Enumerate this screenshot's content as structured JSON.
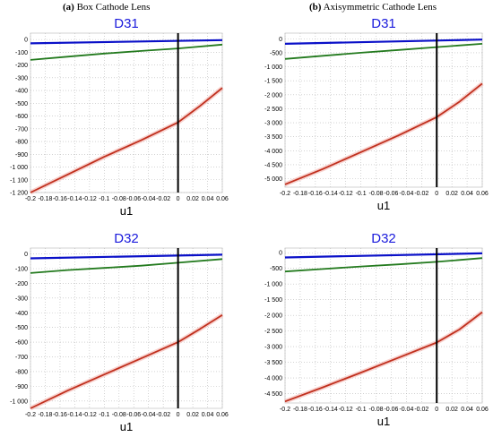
{
  "column_titles": {
    "a": {
      "letter": "(a)",
      "text": "Box Cathode Lens"
    },
    "b": {
      "letter": "(b)",
      "text": "Axisymmetric Cathode Lens"
    }
  },
  "colors": {
    "title": "#1a1adc",
    "blue": "#0a10c8",
    "green": "#237a1e",
    "red": "#c0301e",
    "axis_line": "#000000",
    "grid": "#b8b8b8"
  },
  "chart_data": [
    {
      "id": "a1",
      "type": "line",
      "title": "D31",
      "xlabel": "u1",
      "ylabel": "",
      "xlim": [
        -0.2,
        0.06
      ],
      "ylim": [
        -1200,
        50
      ],
      "grid": true,
      "xticks": [
        -0.2,
        -0.18,
        -0.16,
        -0.14,
        -0.12,
        -0.1,
        -0.08,
        -0.06,
        -0.04,
        -0.02,
        0,
        0.02,
        0.04,
        0.06
      ],
      "xtick_labels": [
        "-0.2",
        "-0.18",
        "-0.16",
        "-0.14",
        "-0.12",
        "-0.1",
        "-0.08",
        "-0.06",
        "-0.04",
        "-0.02",
        "0",
        "0.02",
        "0.04",
        "0.06"
      ],
      "yticks": [
        0,
        -100,
        -200,
        -300,
        -400,
        -500,
        -600,
        -700,
        -800,
        -900,
        -1000,
        -1100,
        -1200
      ],
      "ytick_labels": [
        "0",
        "-100",
        "-200",
        "-300",
        "-400",
        "-500",
        "-600",
        "-700",
        "-800",
        "-900",
        "-1 000",
        "-1 100",
        "-1 200"
      ],
      "vline_x": 0,
      "series": [
        {
          "color": "blue",
          "x": [
            -0.2,
            0.06
          ],
          "y": [
            -30,
            -5
          ]
        },
        {
          "color": "green",
          "x": [
            -0.2,
            -0.15,
            -0.1,
            -0.05,
            0,
            0.06
          ],
          "y": [
            -160,
            -135,
            -110,
            -90,
            -70,
            -40
          ]
        },
        {
          "color": "red",
          "x": [
            -0.2,
            -0.15,
            -0.1,
            -0.05,
            0,
            0.03,
            0.06
          ],
          "y": [
            -1200,
            -1060,
            -920,
            -790,
            -650,
            -520,
            -380
          ]
        }
      ]
    },
    {
      "id": "b1",
      "type": "line",
      "title": "D31",
      "xlabel": "u1",
      "ylabel": "",
      "xlim": [
        -0.2,
        0.06
      ],
      "ylim": [
        -5300,
        200
      ],
      "grid": true,
      "xticks": [
        -0.2,
        -0.18,
        -0.16,
        -0.14,
        -0.12,
        -0.1,
        -0.08,
        -0.06,
        -0.04,
        -0.02,
        0,
        0.02,
        0.04,
        0.06
      ],
      "xtick_labels": [
        "-0.2",
        "-0.18",
        "-0.16",
        "-0.14",
        "-0.12",
        "-0.1",
        "-0.08",
        "-0.06",
        "-0.04",
        "-0.02",
        "0",
        "0.02",
        "0.04",
        "0.06"
      ],
      "yticks": [
        0,
        -500,
        -1000,
        -1500,
        -2000,
        -2500,
        -3000,
        -3500,
        -4000,
        -4500,
        -5000
      ],
      "ytick_labels": [
        "0",
        "-500",
        "-1 000",
        "-1 500",
        "-2 000",
        "-2 500",
        "-3 000",
        "-3 500",
        "-4 000",
        "-4 500",
        "-5 000"
      ],
      "vline_x": 0,
      "series": [
        {
          "color": "blue",
          "x": [
            -0.2,
            0.06
          ],
          "y": [
            -180,
            -30
          ]
        },
        {
          "color": "green",
          "x": [
            -0.2,
            -0.15,
            -0.1,
            -0.05,
            0,
            0.06
          ],
          "y": [
            -720,
            -610,
            -500,
            -400,
            -300,
            -180
          ]
        },
        {
          "color": "red",
          "x": [
            -0.2,
            -0.15,
            -0.1,
            -0.05,
            0,
            0.03,
            0.06
          ],
          "y": [
            -5200,
            -4650,
            -4050,
            -3450,
            -2800,
            -2250,
            -1600
          ]
        }
      ]
    },
    {
      "id": "a2",
      "type": "line",
      "title": "D32",
      "xlabel": "u1",
      "ylabel": "",
      "xlim": [
        -0.2,
        0.06
      ],
      "ylim": [
        -1050,
        40
      ],
      "grid": true,
      "xticks": [
        -0.2,
        -0.18,
        -0.16,
        -0.14,
        -0.12,
        -0.1,
        -0.08,
        -0.06,
        -0.04,
        -0.02,
        0,
        0.02,
        0.04,
        0.06
      ],
      "xtick_labels": [
        "-0.2",
        "-0.18",
        "-0.16",
        "-0.14",
        "-0.12",
        "-0.1",
        "-0.08",
        "-0.06",
        "-0.04",
        "-0.02",
        "0",
        "0.02",
        "0.04",
        "0.06"
      ],
      "yticks": [
        0,
        -100,
        -200,
        -300,
        -400,
        -500,
        -600,
        -700,
        -800,
        -900,
        -1000
      ],
      "ytick_labels": [
        "0",
        "-100",
        "-200",
        "-300",
        "-400",
        "-500",
        "-600",
        "-700",
        "-800",
        "-900",
        "-1 000"
      ],
      "vline_x": 0,
      "series": [
        {
          "color": "blue",
          "x": [
            -0.2,
            0.06
          ],
          "y": [
            -30,
            -5
          ]
        },
        {
          "color": "green",
          "x": [
            -0.2,
            -0.15,
            -0.1,
            -0.05,
            0,
            0.06
          ],
          "y": [
            -130,
            -110,
            -95,
            -80,
            -60,
            -35
          ]
        },
        {
          "color": "red",
          "x": [
            -0.2,
            -0.15,
            -0.1,
            -0.05,
            0,
            0.03,
            0.06
          ],
          "y": [
            -1050,
            -930,
            -820,
            -710,
            -600,
            -510,
            -415
          ]
        }
      ]
    },
    {
      "id": "b2",
      "type": "line",
      "title": "D32",
      "xlabel": "u1",
      "ylabel": "",
      "xlim": [
        -0.2,
        0.06
      ],
      "ylim": [
        -4800,
        150
      ],
      "grid": true,
      "xticks": [
        -0.2,
        -0.18,
        -0.16,
        -0.14,
        -0.12,
        -0.1,
        -0.08,
        -0.06,
        -0.04,
        -0.02,
        0,
        0.02,
        0.04,
        0.06
      ],
      "xtick_labels": [
        "-0.2",
        "-0.18",
        "-0.16",
        "-0.14",
        "-0.12",
        "-0.1",
        "-0.08",
        "-0.06",
        "-0.04",
        "-0.02",
        "0",
        "0.02",
        "0.04",
        "0.06"
      ],
      "yticks": [
        0,
        -500,
        -1000,
        -1500,
        -2000,
        -2500,
        -3000,
        -3500,
        -4000,
        -4500
      ],
      "ytick_labels": [
        "0",
        "-500",
        "-1 000",
        "-1 500",
        "-2 000",
        "-2 500",
        "-3 000",
        "-3 500",
        "-4 000",
        "-4 500"
      ],
      "vline_x": 0,
      "series": [
        {
          "color": "blue",
          "x": [
            -0.2,
            0.06
          ],
          "y": [
            -150,
            -20
          ]
        },
        {
          "color": "green",
          "x": [
            -0.2,
            -0.15,
            -0.1,
            -0.05,
            0,
            0.06
          ],
          "y": [
            -600,
            -520,
            -440,
            -370,
            -290,
            -170
          ]
        },
        {
          "color": "red",
          "x": [
            -0.2,
            -0.15,
            -0.1,
            -0.05,
            0,
            0.03,
            0.06
          ],
          "y": [
            -4750,
            -4300,
            -3830,
            -3350,
            -2870,
            -2450,
            -1900
          ]
        }
      ]
    }
  ]
}
